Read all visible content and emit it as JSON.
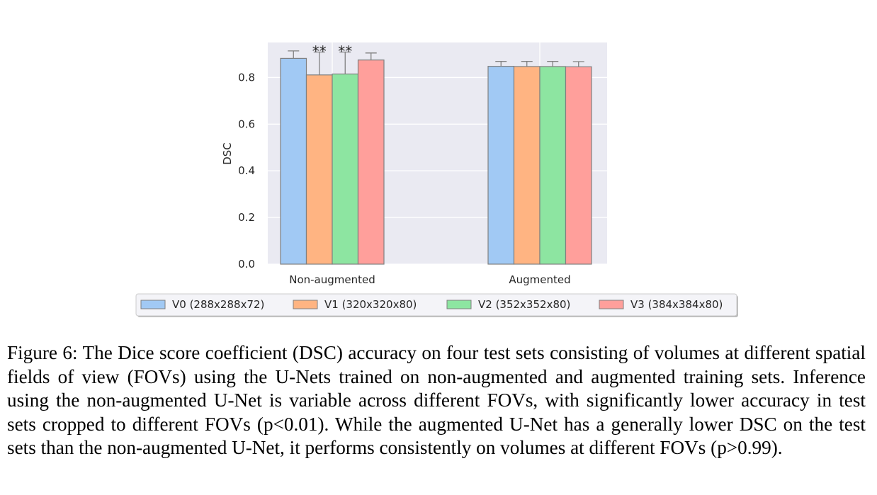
{
  "chart_data": {
    "type": "bar",
    "title": "",
    "xlabel": "",
    "ylabel": "DSC",
    "ylim": [
      0,
      0.95
    ],
    "yticks": [
      "0.0",
      "0.2",
      "0.4",
      "0.6",
      "0.8"
    ],
    "categories": [
      "Non-augmented",
      "Augmented"
    ],
    "series": [
      {
        "name": "V0 (288x288x72)",
        "values": [
          0.882,
          0.848
        ],
        "errors": [
          0.032,
          0.021
        ],
        "color": "#a1c9f4"
      },
      {
        "name": "V1 (320x320x80)",
        "values": [
          0.811,
          0.847
        ],
        "errors": [
          0.098,
          0.022
        ],
        "color": "#ffb482"
      },
      {
        "name": "V2 (352x352x80)",
        "values": [
          0.815,
          0.847
        ],
        "errors": [
          0.094,
          0.022
        ],
        "color": "#8de5a1"
      },
      {
        "name": "V3 (384x384x80)",
        "values": [
          0.875,
          0.846
        ],
        "errors": [
          0.03,
          0.022
        ],
        "color": "#ff9f9b"
      }
    ],
    "annotations": [
      {
        "text": "**",
        "category": 0,
        "series": 1
      },
      {
        "text": "**",
        "category": 0,
        "series": 2
      }
    ],
    "grid": true,
    "legend_position": "bottom"
  },
  "caption": "Figure 6: The Dice score coefficient (DSC) accuracy on four test sets consisting of volumes at different spatial fields of view (FOVs) using the U-Nets trained on non-augmented and augmented training sets. Inference using the non-augmented U-Net is variable across different FOVs, with significantly lower accuracy in test sets cropped to different FOVs (p<0.01). While the augmented U-Net has a generally lower DSC on the test sets than the non-augmented U-Net, it performs consistently on volumes at different FOVs (p>0.99)."
}
